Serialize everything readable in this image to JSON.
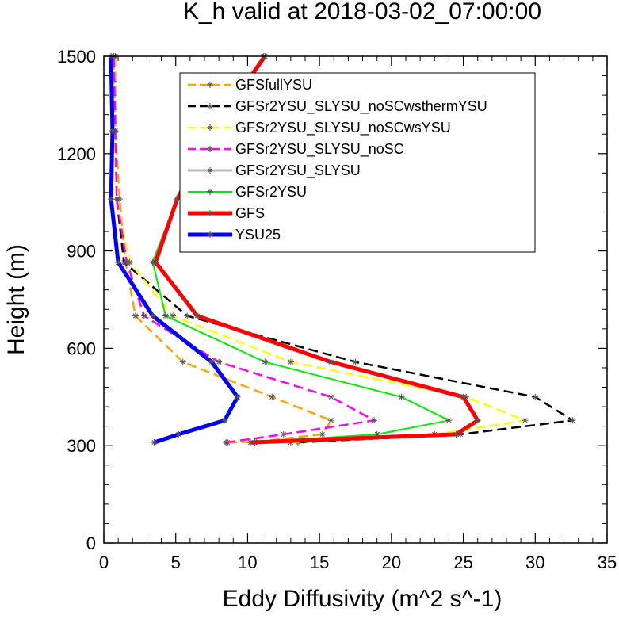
{
  "chart_data": {
    "type": "line",
    "title": "K_h valid at 2018-03-02_07:00:00",
    "xlabel": "Eddy Diffusivity (m^2 s^-1)",
    "ylabel": "Height (m)",
    "xlim": [
      0,
      35
    ],
    "ylim": [
      0,
      1500
    ],
    "xticks": [
      0,
      5,
      10,
      15,
      20,
      25,
      30,
      35
    ],
    "yticks": [
      0,
      300,
      600,
      900,
      1200,
      1500
    ],
    "grid": false,
    "legend_position": "top-center",
    "series": [
      {
        "name": "GFSfullYSU",
        "color": "#ffa500",
        "dash": "dashed",
        "width": 2.5,
        "points": [
          [
            8.6,
            310
          ],
          [
            10.6,
            312
          ],
          [
            15.2,
            335
          ],
          [
            15.8,
            378
          ],
          [
            11.7,
            450
          ],
          [
            5.5,
            558
          ],
          [
            2.2,
            700
          ],
          [
            1.5,
            865
          ],
          [
            1.1,
            1060
          ],
          [
            0.8,
            1270
          ],
          [
            0.7,
            1500
          ]
        ]
      },
      {
        "name": "GFSr2YSU_SLYSU_noSCwsthermYSU",
        "color": "#000000",
        "dash": "dashed",
        "width": 2.5,
        "points": [
          [
            13.5,
            310
          ],
          [
            24.8,
            335
          ],
          [
            32.6,
            378
          ],
          [
            30.0,
            450
          ],
          [
            17.5,
            558
          ],
          [
            5.8,
            700
          ],
          [
            1.4,
            865
          ],
          [
            0.9,
            1060
          ],
          [
            0.8,
            1270
          ],
          [
            0.8,
            1500
          ]
        ]
      },
      {
        "name": "GFSr2YSU_SLYSU_noSCwsYSU",
        "color": "#ffff00",
        "dash": "dashed",
        "width": 2.5,
        "points": [
          [
            13.0,
            310
          ],
          [
            23.0,
            335
          ],
          [
            29.3,
            378
          ],
          [
            25.2,
            450
          ],
          [
            13.0,
            558
          ],
          [
            4.8,
            700
          ],
          [
            1.8,
            865
          ],
          [
            0.9,
            1060
          ],
          [
            0.8,
            1270
          ],
          [
            0.8,
            1500
          ]
        ]
      },
      {
        "name": "GFSr2YSU_SLYSU_noSC",
        "color": "#ff00ff",
        "dash": "dashed",
        "width": 2.5,
        "points": [
          [
            8.5,
            310
          ],
          [
            12.5,
            335
          ],
          [
            18.8,
            378
          ],
          [
            15.8,
            450
          ],
          [
            8.0,
            558
          ],
          [
            2.8,
            700
          ],
          [
            1.6,
            865
          ],
          [
            0.9,
            1060
          ],
          [
            0.8,
            1270
          ],
          [
            0.7,
            1500
          ]
        ]
      },
      {
        "name": "GFSr2YSU_SLYSU",
        "color": "#bbbbbb",
        "dash": "solid",
        "width": 3,
        "points": [
          [
            3.4,
            865
          ],
          [
            5.1,
            1060
          ],
          [
            7.5,
            1270
          ],
          [
            11.1,
            1500
          ]
        ]
      },
      {
        "name": "GFSr2YSU",
        "color": "#00ee00",
        "dash": "solid",
        "width": 2,
        "points": [
          [
            10.5,
            310
          ],
          [
            19.0,
            335
          ],
          [
            24.0,
            378
          ],
          [
            20.7,
            450
          ],
          [
            11.2,
            558
          ],
          [
            4.3,
            700
          ],
          [
            3.4,
            865
          ],
          [
            5.1,
            1060
          ],
          [
            7.6,
            1270
          ],
          [
            11.2,
            1500
          ]
        ]
      },
      {
        "name": "GFS",
        "color": "#ff0000",
        "dash": "solid",
        "width": 5,
        "points": [
          [
            10.2,
            310
          ],
          [
            24.5,
            335
          ],
          [
            26.0,
            378
          ],
          [
            25.0,
            450
          ],
          [
            15.8,
            558
          ],
          [
            6.5,
            700
          ],
          [
            3.6,
            865
          ],
          [
            5.1,
            1060
          ],
          [
            7.6,
            1270
          ],
          [
            11.2,
            1500
          ]
        ]
      },
      {
        "name": "YSU25",
        "color": "#0000ff",
        "dash": "solid",
        "width": 5,
        "points": [
          [
            3.5,
            310
          ],
          [
            5.2,
            335
          ],
          [
            8.4,
            378
          ],
          [
            9.3,
            450
          ],
          [
            7.5,
            558
          ],
          [
            3.4,
            700
          ],
          [
            1.0,
            865
          ],
          [
            0.5,
            1060
          ],
          [
            0.6,
            1270
          ],
          [
            0.5,
            1500
          ]
        ]
      }
    ]
  }
}
